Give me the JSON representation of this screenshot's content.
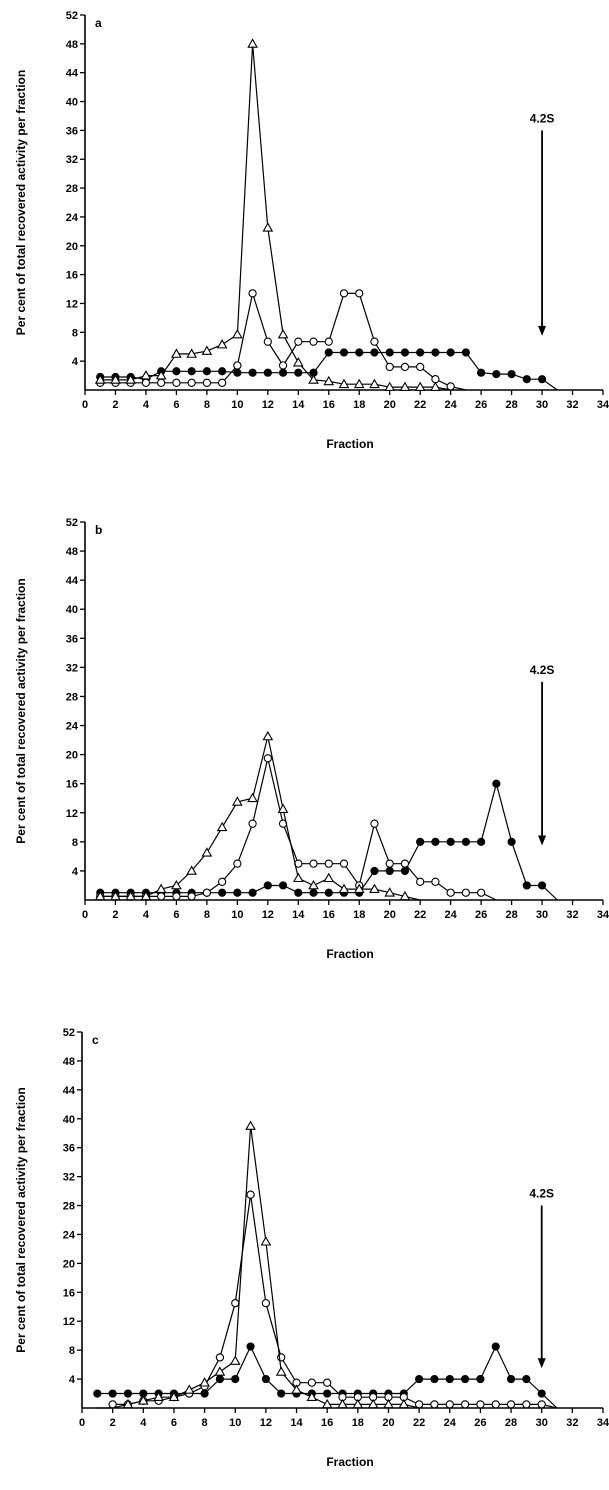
{
  "figure": {
    "panels": [
      {
        "letter": "a",
        "xlabel": "Fraction",
        "ylabel": "Per cent of total recovered activity per fraction",
        "marker_label": "4.2S",
        "marker_x": 30
      },
      {
        "letter": "b",
        "xlabel": "Fraction",
        "ylabel": "Per cent of total recovered activity per fraction",
        "marker_label": "4.2S",
        "marker_x": 30
      },
      {
        "letter": "c",
        "xlabel": "Fraction",
        "ylabel": "Per cent of total recovered activity per fraction",
        "marker_label": "4.2S",
        "marker_x": 30
      }
    ]
  },
  "chart_data": [
    {
      "type": "line",
      "panel": "a",
      "xlabel": "Fraction",
      "ylabel": "Per cent of total recovered activity per fraction",
      "xlim": [
        0,
        34
      ],
      "ylim": [
        0,
        52
      ],
      "xticks": [
        0,
        2,
        4,
        6,
        8,
        10,
        12,
        14,
        16,
        18,
        20,
        22,
        24,
        26,
        28,
        30,
        32,
        34
      ],
      "yticks": [
        4,
        8,
        12,
        16,
        20,
        24,
        28,
        32,
        36,
        40,
        44,
        48,
        52
      ],
      "annotation": {
        "text": "4.2S",
        "x": 30
      },
      "series": [
        {
          "marker": "filled-circle",
          "x": [
            1,
            2,
            3,
            4,
            5,
            6,
            7,
            8,
            9,
            10,
            11,
            12,
            13,
            14,
            15,
            16,
            17,
            18,
            19,
            20,
            21,
            22,
            23,
            24,
            25,
            26,
            27,
            28,
            29,
            30,
            31
          ],
          "y": [
            1.8,
            1.8,
            1.8,
            1.5,
            2.6,
            2.6,
            2.6,
            2.6,
            2.6,
            2.4,
            2.4,
            2.4,
            2.4,
            2.4,
            2.4,
            5.2,
            5.2,
            5.2,
            5.2,
            5.2,
            5.2,
            5.2,
            5.2,
            5.2,
            5.2,
            2.4,
            2.2,
            2.2,
            1.5,
            1.5,
            0
          ]
        },
        {
          "marker": "open-circle",
          "x": [
            1,
            2,
            3,
            4,
            5,
            6,
            7,
            8,
            9,
            10,
            11,
            12,
            13,
            14,
            15,
            16,
            17,
            18,
            19,
            20,
            21,
            22,
            23,
            24,
            25
          ],
          "y": [
            1,
            1,
            1,
            1,
            1,
            1,
            1,
            1,
            1,
            3.4,
            13.4,
            6.7,
            3.4,
            6.7,
            6.7,
            6.7,
            13.4,
            13.4,
            6.7,
            3.2,
            3.2,
            3.2,
            1.5,
            0.5,
            0
          ]
        },
        {
          "marker": "open-triangle",
          "x": [
            1,
            2,
            3,
            4,
            5,
            6,
            7,
            8,
            9,
            10,
            11,
            12,
            13,
            14,
            15,
            16,
            17,
            18,
            19,
            20,
            21,
            22,
            23,
            24
          ],
          "y": [
            1.4,
            1.4,
            1.4,
            2,
            2,
            5,
            5,
            5.4,
            6.3,
            7.7,
            48,
            22.5,
            7.7,
            3.8,
            1.4,
            1.2,
            0.8,
            0.8,
            0.8,
            0.4,
            0.4,
            0.4,
            0.4,
            0
          ]
        }
      ]
    },
    {
      "type": "line",
      "panel": "b",
      "xlabel": "Fraction",
      "ylabel": "Per cent of total recovered activity per fraction",
      "xlim": [
        0,
        34
      ],
      "ylim": [
        0,
        52
      ],
      "xticks": [
        0,
        2,
        4,
        6,
        8,
        10,
        12,
        14,
        16,
        18,
        20,
        22,
        24,
        26,
        28,
        30,
        32,
        34
      ],
      "yticks": [
        4,
        8,
        12,
        16,
        20,
        24,
        28,
        32,
        36,
        40,
        44,
        48,
        52
      ],
      "annotation": {
        "text": "4.2S",
        "x": 30
      },
      "series": [
        {
          "marker": "filled-circle",
          "x": [
            1,
            2,
            3,
            4,
            5,
            6,
            7,
            8,
            9,
            10,
            11,
            12,
            13,
            14,
            15,
            16,
            17,
            18,
            19,
            20,
            21,
            22,
            23,
            24,
            25,
            26,
            27,
            28,
            29,
            30,
            31
          ],
          "y": [
            1,
            1,
            1,
            1,
            1,
            1,
            1,
            1,
            1,
            1,
            1,
            2,
            2,
            1,
            1,
            1,
            1,
            1,
            4,
            4,
            4,
            8,
            8,
            8,
            8,
            8,
            16,
            8,
            2,
            2,
            0
          ]
        },
        {
          "marker": "open-circle",
          "x": [
            1,
            2,
            3,
            4,
            5,
            6,
            7,
            8,
            9,
            10,
            11,
            12,
            13,
            14,
            15,
            16,
            17,
            18,
            19,
            20,
            21,
            22,
            23,
            24,
            25,
            26,
            27
          ],
          "y": [
            0.5,
            0.5,
            0.5,
            0.5,
            0.5,
            0.5,
            0.5,
            1,
            2.5,
            5,
            10.5,
            19.5,
            10.5,
            5,
            5,
            5,
            5,
            2,
            10.5,
            5,
            5,
            2.5,
            2.5,
            1,
            1,
            1,
            0
          ]
        },
        {
          "marker": "open-triangle",
          "x": [
            1,
            2,
            3,
            4,
            5,
            6,
            7,
            8,
            9,
            10,
            11,
            12,
            13,
            14,
            15,
            16,
            17,
            18,
            19,
            20,
            21,
            22
          ],
          "y": [
            0.5,
            0.5,
            0.5,
            0.5,
            1.5,
            2,
            4,
            6.5,
            10,
            13.5,
            14,
            22.5,
            12.5,
            3,
            2,
            3,
            1.5,
            1.5,
            1.5,
            1,
            0.5,
            0
          ]
        }
      ]
    },
    {
      "type": "line",
      "panel": "c",
      "xlabel": "Fraction",
      "ylabel": "Per cent of total recovered activity per fraction",
      "xlim": [
        0,
        34
      ],
      "ylim": [
        0,
        52
      ],
      "xticks": [
        0,
        2,
        4,
        6,
        8,
        10,
        12,
        14,
        16,
        18,
        20,
        22,
        24,
        26,
        28,
        30,
        32,
        34
      ],
      "yticks": [
        4,
        8,
        12,
        16,
        20,
        24,
        28,
        32,
        36,
        40,
        44,
        48,
        52
      ],
      "annotation": {
        "text": "4.2S",
        "x": 30
      },
      "series": [
        {
          "marker": "filled-circle",
          "x": [
            1,
            2,
            3,
            4,
            5,
            6,
            7,
            8,
            9,
            10,
            11,
            12,
            13,
            14,
            15,
            16,
            17,
            18,
            19,
            20,
            21,
            22,
            23,
            24,
            25,
            26,
            27,
            28,
            29,
            30,
            31
          ],
          "y": [
            2,
            2,
            2,
            2,
            2,
            2,
            2,
            2,
            4,
            4,
            8.5,
            4,
            2,
            2,
            2,
            2,
            2,
            2,
            2,
            2,
            2,
            4,
            4,
            4,
            4,
            4,
            8.5,
            4,
            4,
            2,
            0
          ]
        },
        {
          "marker": "open-circle",
          "x": [
            2,
            3,
            4,
            5,
            6,
            7,
            8,
            9,
            10,
            11,
            12,
            13,
            14,
            15,
            16,
            17,
            18,
            19,
            20,
            21,
            22,
            23,
            24,
            25,
            26,
            27,
            28,
            29,
            30,
            31
          ],
          "y": [
            0.5,
            0.5,
            1,
            1,
            1.5,
            2,
            3,
            7,
            14.5,
            29.5,
            14.5,
            7,
            3.5,
            3.5,
            3.5,
            1.5,
            1.5,
            1.5,
            1.5,
            1.5,
            0.5,
            0.5,
            0.5,
            0.5,
            0.5,
            0.5,
            0.5,
            0.5,
            0.5,
            0
          ]
        },
        {
          "marker": "open-triangle",
          "x": [
            1,
            2,
            3,
            4,
            5,
            6,
            7,
            8,
            9,
            10,
            11,
            12,
            13,
            14,
            15,
            16,
            17,
            18,
            19,
            20,
            21,
            22
          ],
          "y": [
            0,
            0,
            0.5,
            1,
            1.5,
            1.5,
            2.5,
            3.5,
            5,
            6.5,
            39,
            23,
            5,
            2.5,
            1.5,
            0.5,
            0.5,
            0.5,
            0.5,
            0.5,
            0.5,
            0
          ]
        }
      ]
    }
  ]
}
